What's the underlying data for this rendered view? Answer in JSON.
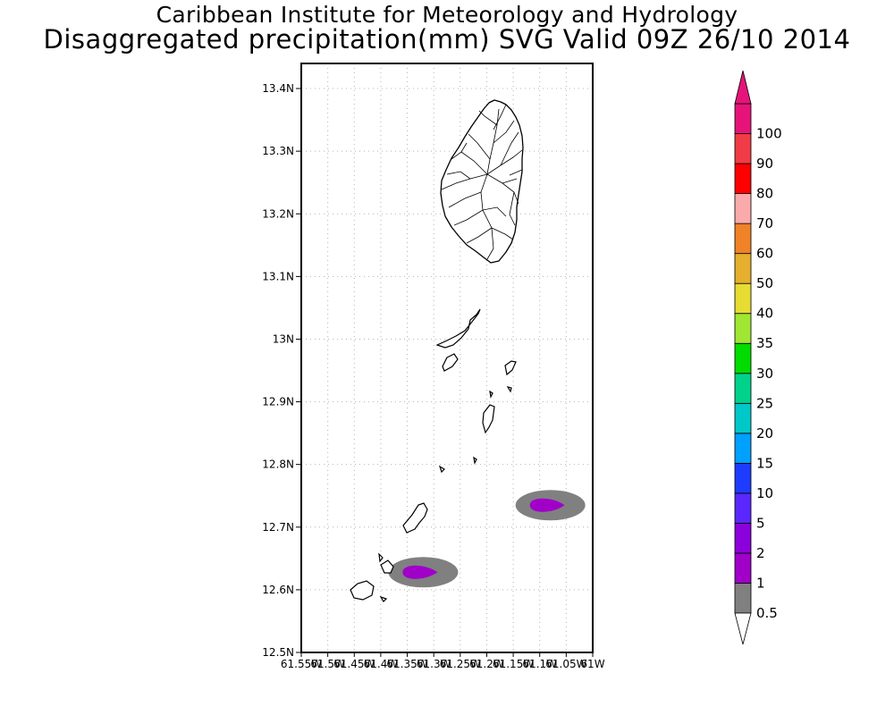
{
  "header": {
    "line1": "Caribbean Institute for Meteorology and Hydrology",
    "line2": "Disaggregated precipitation(mm) SVG Valid 09Z 26/10 2014"
  },
  "map": {
    "lat_ticks": [
      "13.4N",
      "13.3N",
      "13.2N",
      "13.1N",
      "13N",
      "12.9N",
      "12.8N",
      "12.7N",
      "12.6N",
      "12.5N"
    ],
    "lon_ticks": [
      "61.55W",
      "61.5W",
      "61.45W",
      "61.4W",
      "61.35W",
      "61.3W",
      "61.25W",
      "61.2W",
      "61.15W",
      "61.1W",
      "61.05W",
      "61W"
    ],
    "grid": "dotted"
  },
  "colorbar": {
    "labels": [
      "0.5",
      "1",
      "2",
      "5",
      "10",
      "15",
      "20",
      "25",
      "30",
      "35",
      "40",
      "50",
      "60",
      "70",
      "80",
      "90",
      "100"
    ],
    "colors": [
      "#808080",
      "#a000c8",
      "#8c00dc",
      "#5a28ff",
      "#1e3cff",
      "#00a0ff",
      "#00c8c8",
      "#00d28c",
      "#00dc00",
      "#a0e632",
      "#e6dc32",
      "#e6af2d",
      "#f08228",
      "#faaaaa",
      "#ff0000",
      "#f03c46",
      "#e6147a"
    ],
    "upper_arrow_color": "#e6147a",
    "lower_arrow_color": "#ffffff"
  },
  "chart_data": {
    "type": "heatmap",
    "title": "Disaggregated precipitation(mm) SVG Valid 09Z 26/10 2014",
    "xlim": [
      -61.55,
      -61.0
    ],
    "ylim": [
      12.5,
      13.4
    ],
    "units": "mm",
    "levels": [
      0.5,
      1,
      2,
      5,
      10,
      15,
      20,
      25,
      30,
      35,
      40,
      50,
      60,
      70,
      80,
      90,
      100
    ],
    "rain_cells": [
      {
        "lon": -61.33,
        "lat": 12.628,
        "outer_level": 0.5,
        "inner_level": 1
      },
      {
        "lon": -61.09,
        "lat": 12.735,
        "outer_level": 0.5,
        "inner_level": 1
      }
    ]
  }
}
